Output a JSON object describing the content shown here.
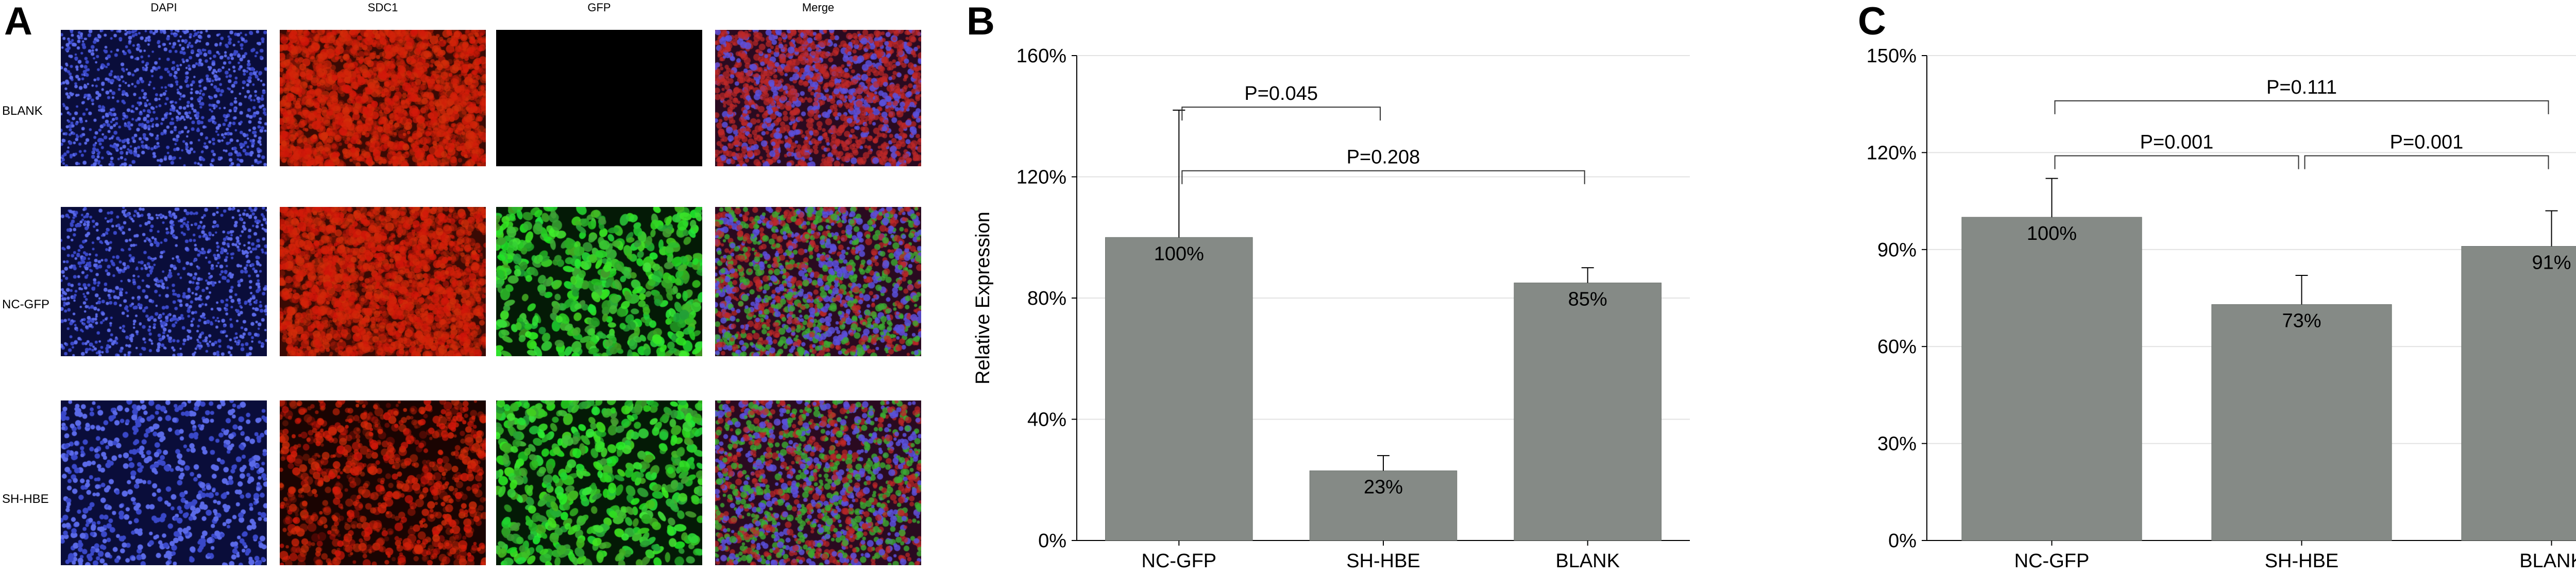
{
  "figure": {
    "panel_a_letter": "A",
    "panel_b_letter": "B",
    "panel_c_letter": "C"
  },
  "panel_a": {
    "columns": [
      "DAPI",
      "SDC1",
      "GFP",
      "Merge"
    ],
    "rows": [
      "BLANK",
      "NC-GFP",
      "SH-HBE"
    ],
    "channel_colors": {
      "DAPI": "#3a48c8",
      "SDC1": "#c82010",
      "GFP": "#2ec82a",
      "Merge": "#7a3aa0"
    },
    "cells": [
      [
        "dapi",
        "sdc1",
        "empty",
        "merge-rb"
      ],
      [
        "dapi",
        "sdc1",
        "gfp",
        "merge-rgb"
      ],
      [
        "dapi-bright",
        "sdc1-sparse",
        "gfp",
        "merge-rgb"
      ]
    ]
  },
  "chart_data": [
    {
      "type": "bar",
      "panel": "B",
      "categories": [
        "NC-GFP",
        "SH-HBE",
        "BLANK"
      ],
      "values": [
        100,
        23,
        85
      ],
      "errors": [
        42,
        5,
        5
      ],
      "data_labels": [
        "100%",
        "23%",
        "85%"
      ],
      "ylabel": "Relative Expression",
      "ylim": [
        0,
        160
      ],
      "yticks": [
        0,
        40,
        80,
        120,
        160
      ],
      "ytick_labels": [
        "0%",
        "40%",
        "80%",
        "120%",
        "160%"
      ],
      "bar_color": "#858a86",
      "grid": true,
      "annotations": [
        {
          "from": 0,
          "to": 1,
          "level": 143,
          "label": "P=0.045"
        },
        {
          "from": 0,
          "to": 2,
          "level": 122,
          "label": "P=0.208"
        }
      ]
    },
    {
      "type": "bar",
      "panel": "C",
      "categories": [
        "NC-GFP",
        "SH-HBE",
        "BLANK"
      ],
      "values": [
        100,
        73,
        91
      ],
      "errors": [
        12,
        9,
        11
      ],
      "data_labels": [
        "100%",
        "73%",
        "91%"
      ],
      "ylabel": "",
      "ylim": [
        0,
        150
      ],
      "yticks": [
        0,
        30,
        60,
        90,
        120,
        150
      ],
      "ytick_labels": [
        "0%",
        "30%",
        "60%",
        "90%",
        "120%",
        "150%"
      ],
      "bar_color": "#858a86",
      "grid": true,
      "annotations": [
        {
          "from": 0,
          "to": 2,
          "level": 136,
          "label": "P=0.111"
        },
        {
          "from": 0,
          "to": 1,
          "level": 119,
          "label": "P=0.001"
        },
        {
          "from": 1,
          "to": 2,
          "level": 119,
          "label": "P=0.001"
        }
      ]
    }
  ]
}
